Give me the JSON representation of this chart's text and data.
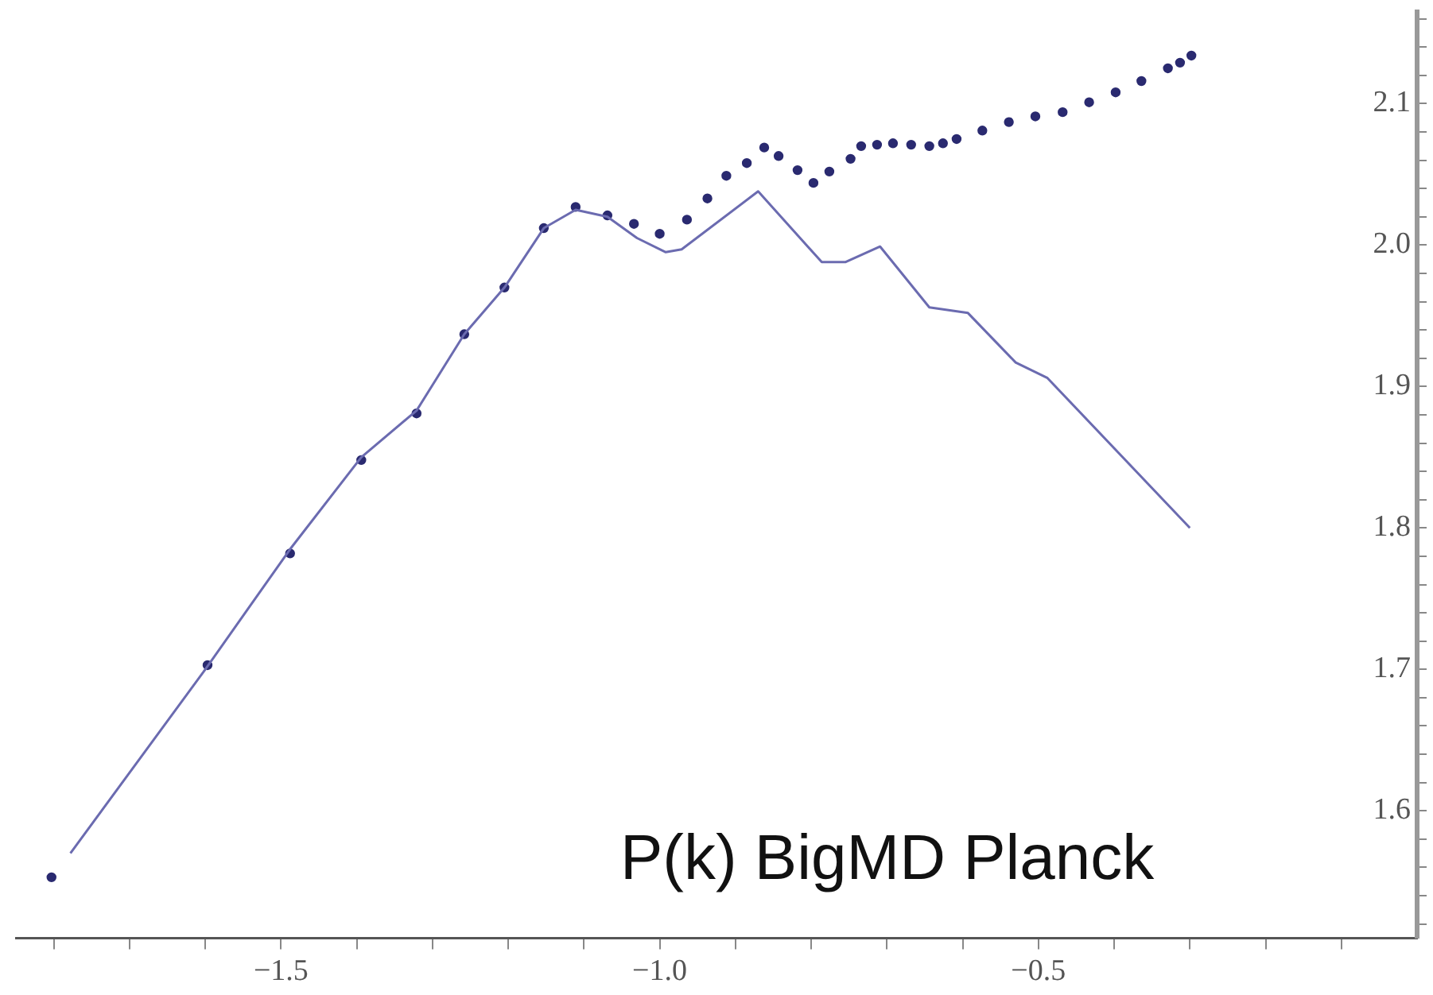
{
  "chart_data": {
    "type": "scatter",
    "xlim": [
      -1.85,
      0
    ],
    "ylim": [
      1.51,
      2.165
    ],
    "xticks": [
      {
        "value": -1.8,
        "label": null
      },
      {
        "value": -1.7,
        "label": null
      },
      {
        "value": -1.6,
        "label": null
      },
      {
        "value": -1.5,
        "label": "−1.5"
      },
      {
        "value": -1.4,
        "label": null
      },
      {
        "value": -1.3,
        "label": null
      },
      {
        "value": -1.2,
        "label": null
      },
      {
        "value": -1.1,
        "label": null
      },
      {
        "value": -1.0,
        "label": "−1.0"
      },
      {
        "value": -0.9,
        "label": null
      },
      {
        "value": -0.8,
        "label": null
      },
      {
        "value": -0.7,
        "label": null
      },
      {
        "value": -0.6,
        "label": null
      },
      {
        "value": -0.5,
        "label": "−0.5"
      },
      {
        "value": -0.4,
        "label": null
      },
      {
        "value": -0.3,
        "label": null
      },
      {
        "value": -0.2,
        "label": null
      },
      {
        "value": -0.1,
        "label": null
      }
    ],
    "yticks": [
      {
        "value": 1.52,
        "label": null
      },
      {
        "value": 1.54,
        "label": null
      },
      {
        "value": 1.56,
        "label": null
      },
      {
        "value": 1.58,
        "label": null
      },
      1.6,
      {
        "value": 1.62,
        "label": null
      },
      {
        "value": 1.64,
        "label": null
      },
      {
        "value": 1.66,
        "label": null
      },
      {
        "value": 1.68,
        "label": null
      },
      1.7,
      {
        "value": 1.72,
        "label": null
      },
      {
        "value": 1.74,
        "label": null
      },
      {
        "value": 1.76,
        "label": null
      },
      {
        "value": 1.78,
        "label": null
      },
      1.8,
      {
        "value": 1.82,
        "label": null
      },
      {
        "value": 1.84,
        "label": null
      },
      {
        "value": 1.86,
        "label": null
      },
      {
        "value": 1.88,
        "label": null
      },
      1.9,
      {
        "value": 1.92,
        "label": null
      },
      {
        "value": 1.94,
        "label": null
      },
      {
        "value": 1.96,
        "label": null
      },
      {
        "value": 1.98,
        "label": null
      },
      {
        "value": 2.0,
        "label": "2.0"
      },
      {
        "value": 2.02,
        "label": null
      },
      {
        "value": 2.04,
        "label": null
      },
      {
        "value": 2.06,
        "label": null
      },
      {
        "value": 2.08,
        "label": null
      },
      2.1,
      {
        "value": 2.12,
        "label": null
      },
      {
        "value": 2.14,
        "label": null
      },
      {
        "value": 2.16,
        "label": null
      }
    ],
    "grid": false,
    "legend": false,
    "marker": "circle",
    "annotations": [
      "P(k) BigMD Planck"
    ],
    "series": [
      {
        "type": "line",
        "color": "#6b6bb0",
        "marker": "none",
        "line_style": "solid",
        "x": [
          -1.778,
          -1.6,
          -1.488,
          -1.394,
          -1.321,
          -1.258,
          -1.205,
          -1.153,
          -1.111,
          -1.069,
          -1.03,
          -0.992,
          -0.971,
          -0.87,
          -0.786,
          -0.755,
          -0.709,
          -0.644,
          -0.593,
          -0.53,
          -0.488,
          -0.3
        ],
        "values": [
          1.57,
          1.7,
          1.785,
          1.85,
          1.883,
          1.937,
          1.97,
          2.012,
          2.025,
          2.02,
          2.005,
          1.995,
          1.997,
          2.038,
          1.988,
          1.988,
          1.999,
          1.956,
          1.952,
          1.917,
          1.906,
          1.8
        ]
      },
      {
        "color": "#2a2a70",
        "x": [
          -1.803,
          -1.597,
          -1.488,
          -1.394,
          -1.321,
          -1.258,
          -1.205,
          -1.153,
          -1.111,
          -1.069,
          -1.034,
          -1.0,
          -0.964,
          -0.937,
          -0.912,
          -0.885,
          -0.862,
          -0.843,
          -0.818,
          -0.797,
          -0.776,
          -0.748,
          -0.734,
          -0.713,
          -0.692,
          -0.668,
          -0.644,
          -0.626,
          -0.608,
          -0.574,
          -0.539,
          -0.504,
          -0.468,
          -0.433,
          -0.398,
          -0.364,
          -0.329,
          -0.313,
          -0.298
        ],
        "values": [
          1.553,
          1.703,
          1.782,
          1.848,
          1.881,
          1.937,
          1.97,
          2.012,
          2.027,
          2.021,
          2.015,
          2.008,
          2.018,
          2.033,
          2.049,
          2.058,
          2.069,
          2.063,
          2.053,
          2.044,
          2.052,
          2.061,
          2.07,
          2.071,
          2.072,
          2.071,
          2.07,
          2.072,
          2.075,
          2.081,
          2.087,
          2.091,
          2.094,
          2.101,
          2.108,
          2.116,
          2.125,
          2.129,
          2.134
        ]
      }
    ]
  }
}
